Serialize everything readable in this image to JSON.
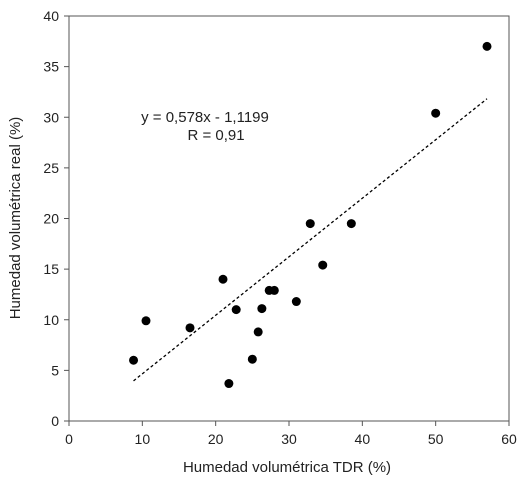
{
  "chart_data": {
    "type": "scatter",
    "xlabel": "Humedad  volumétrica TDR (%)",
    "ylabel": "Humedad  volumétrica real (%)",
    "xlim": [
      0,
      60
    ],
    "ylim": [
      0,
      40
    ],
    "xticks": [
      0,
      10,
      20,
      30,
      40,
      50,
      60
    ],
    "yticks": [
      0,
      5,
      10,
      15,
      20,
      25,
      30,
      35,
      40
    ],
    "grid": false,
    "legend": "none",
    "points": [
      {
        "x": 8.8,
        "y": 6.0
      },
      {
        "x": 10.5,
        "y": 9.9
      },
      {
        "x": 16.5,
        "y": 9.2
      },
      {
        "x": 21.0,
        "y": 14.0
      },
      {
        "x": 21.8,
        "y": 3.7
      },
      {
        "x": 22.8,
        "y": 11.0
      },
      {
        "x": 25.0,
        "y": 6.1
      },
      {
        "x": 25.8,
        "y": 8.8
      },
      {
        "x": 26.3,
        "y": 11.1
      },
      {
        "x": 27.3,
        "y": 12.9
      },
      {
        "x": 28.0,
        "y": 12.9
      },
      {
        "x": 31.0,
        "y": 11.8
      },
      {
        "x": 32.9,
        "y": 19.5
      },
      {
        "x": 34.6,
        "y": 15.4
      },
      {
        "x": 38.5,
        "y": 19.5
      },
      {
        "x": 50.0,
        "y": 30.4
      },
      {
        "x": 57.0,
        "y": 37.0
      }
    ],
    "trendline": {
      "slope": 0.578,
      "intercept": -1.1199,
      "x_range": [
        8.8,
        57.0
      ],
      "style": "dashed"
    },
    "annotations": [
      "y = 0,578x - 1,1199",
      "R = 0,91"
    ],
    "colors": {
      "marker": "#000000",
      "line": "#000000",
      "axis": "#555555"
    }
  }
}
